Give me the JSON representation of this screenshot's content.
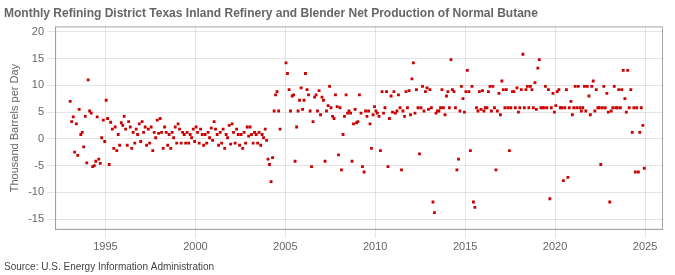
{
  "chart_data": {
    "type": "scatter",
    "title": "Monthly Refining District Texas Inland Refinery and Blender Net Production of Normal Butane",
    "ylabel": "Thousand Barrels per Day",
    "annotations": [
      "Source: U.S. Energy Information Administration"
    ],
    "color": "#cc0000",
    "marker": "square",
    "grid": true,
    "xlim": [
      1992.2,
      2026.0
    ],
    "xticks": [
      1995,
      2000,
      2005,
      2010,
      2015,
      2020,
      2025
    ],
    "ylim": [
      -17,
      21
    ],
    "yticks": [
      -15,
      -10,
      -5,
      0,
      5,
      10,
      15,
      20
    ],
    "x": [
      1993.04,
      1993.12,
      1993.21,
      1993.29,
      1993.38,
      1993.46,
      1993.54,
      1993.63,
      1993.71,
      1993.79,
      1993.88,
      1993.96,
      1994.04,
      1994.12,
      1994.21,
      1994.29,
      1994.38,
      1994.46,
      1994.54,
      1994.63,
      1994.71,
      1994.79,
      1994.88,
      1994.96,
      1995.04,
      1995.12,
      1995.21,
      1995.29,
      1995.38,
      1995.46,
      1995.54,
      1995.63,
      1995.71,
      1995.79,
      1995.88,
      1995.96,
      1996.04,
      1996.12,
      1996.21,
      1996.29,
      1996.38,
      1996.46,
      1996.54,
      1996.63,
      1996.71,
      1996.79,
      1996.88,
      1996.96,
      1997.04,
      1997.12,
      1997.21,
      1997.29,
      1997.38,
      1997.46,
      1997.54,
      1997.63,
      1997.71,
      1997.79,
      1997.88,
      1997.96,
      1998.04,
      1998.12,
      1998.21,
      1998.29,
      1998.38,
      1998.46,
      1998.54,
      1998.63,
      1998.71,
      1998.79,
      1998.88,
      1998.96,
      1999.04,
      1999.12,
      1999.21,
      1999.29,
      1999.38,
      1999.46,
      1999.54,
      1999.63,
      1999.71,
      1999.79,
      1999.88,
      1999.96,
      2000.04,
      2000.12,
      2000.21,
      2000.29,
      2000.38,
      2000.46,
      2000.54,
      2000.63,
      2000.71,
      2000.79,
      2000.88,
      2000.96,
      2001.04,
      2001.12,
      2001.21,
      2001.29,
      2001.38,
      2001.46,
      2001.54,
      2001.63,
      2001.71,
      2001.79,
      2001.88,
      2001.96,
      2002.04,
      2002.12,
      2002.21,
      2002.29,
      2002.38,
      2002.46,
      2002.54,
      2002.63,
      2002.71,
      2002.79,
      2002.88,
      2002.96,
      2003.04,
      2003.12,
      2003.21,
      2003.29,
      2003.38,
      2003.46,
      2003.54,
      2003.63,
      2003.71,
      2003.79,
      2003.88,
      2003.96,
      2004.04,
      2004.12,
      2004.21,
      2004.29,
      2004.38,
      2004.46,
      2004.54,
      2004.63,
      2004.71,
      2005.04,
      2005.12,
      2005.21,
      2005.29,
      2005.38,
      2005.46,
      2005.54,
      2005.63,
      2005.71,
      2005.79,
      2005.88,
      2005.96,
      2006.04,
      2006.12,
      2006.21,
      2006.29,
      2006.38,
      2006.46,
      2006.54,
      2006.63,
      2006.71,
      2006.79,
      2006.88,
      2006.96,
      2007.04,
      2007.12,
      2007.21,
      2007.29,
      2007.38,
      2007.46,
      2007.54,
      2007.63,
      2007.71,
      2007.79,
      2007.88,
      2007.96,
      2008.04,
      2008.12,
      2008.21,
      2008.29,
      2008.38,
      2008.46,
      2008.54,
      2008.63,
      2008.71,
      2008.79,
      2008.88,
      2008.96,
      2009.04,
      2009.12,
      2009.21,
      2009.29,
      2009.38,
      2009.46,
      2009.54,
      2009.63,
      2009.71,
      2009.79,
      2009.88,
      2009.96,
      2010.04,
      2010.12,
      2010.21,
      2010.29,
      2010.38,
      2010.46,
      2010.54,
      2010.63,
      2010.71,
      2010.79,
      2010.88,
      2010.96,
      2011.04,
      2011.12,
      2011.21,
      2011.29,
      2011.38,
      2011.46,
      2011.54,
      2011.63,
      2011.71,
      2011.79,
      2011.88,
      2011.96,
      2012.04,
      2012.12,
      2012.21,
      2012.29,
      2012.38,
      2012.46,
      2012.54,
      2012.63,
      2012.71,
      2012.79,
      2012.88,
      2012.96,
      2013.04,
      2013.12,
      2013.21,
      2013.29,
      2013.38,
      2013.46,
      2013.54,
      2013.63,
      2013.71,
      2013.79,
      2013.88,
      2013.96,
      2014.04,
      2014.12,
      2014.21,
      2014.29,
      2014.38,
      2014.46,
      2014.54,
      2014.63,
      2014.71,
      2014.79,
      2014.88,
      2014.96,
      2015.04,
      2015.12,
      2015.21,
      2015.29,
      2015.38,
      2015.46,
      2015.54,
      2015.63,
      2015.71,
      2015.79,
      2015.88,
      2015.96,
      2016.04,
      2016.12,
      2016.21,
      2016.29,
      2016.38,
      2016.46,
      2016.54,
      2016.63,
      2016.71,
      2016.79,
      2016.88,
      2016.96,
      2017.04,
      2017.12,
      2017.21,
      2017.29,
      2017.38,
      2017.46,
      2017.54,
      2017.63,
      2017.71,
      2017.79,
      2017.88,
      2017.96,
      2018.04,
      2018.12,
      2018.21,
      2018.29,
      2018.38,
      2018.46,
      2018.54,
      2018.63,
      2018.71,
      2018.79,
      2018.88,
      2018.96,
      2019.04,
      2019.12,
      2019.21,
      2019.29,
      2019.38,
      2019.46,
      2019.54,
      2019.63,
      2019.71,
      2019.79,
      2019.88,
      2019.96,
      2020.04,
      2020.12,
      2020.21,
      2020.29,
      2020.38,
      2020.46,
      2020.54,
      2020.63,
      2020.71,
      2020.79,
      2020.88,
      2020.96,
      2021.04,
      2021.12,
      2021.21,
      2021.29,
      2021.38,
      2021.46,
      2021.54,
      2021.63,
      2021.71,
      2021.79,
      2021.88,
      2021.96,
      2022.04,
      2022.12,
      2022.21,
      2022.29,
      2022.38,
      2022.46,
      2022.54,
      2022.63,
      2022.71,
      2022.79,
      2022.88,
      2022.96,
      2023.04,
      2023.12,
      2023.21,
      2023.29,
      2023.38,
      2023.46,
      2023.54,
      2023.63,
      2023.71,
      2023.79,
      2023.88,
      2023.96,
      2024.04,
      2024.12,
      2024.21,
      2024.29,
      2024.38,
      2024.46,
      2024.54,
      2024.63,
      2024.71,
      2024.79,
      2024.88,
      2024.96
    ],
    "values": [
      7.0,
      3.2,
      4.1,
      -2.5,
      2.8,
      -3.1,
      5.5,
      0.8,
      1.2,
      -1.5,
      4.2,
      -4.5,
      11.0,
      5.2,
      4.8,
      -5.2,
      -5.0,
      -4.2,
      4.1,
      -3.8,
      -4.6,
      0.2,
      3.5,
      -0.5,
      7.2,
      3.8,
      -4.8,
      3.1,
      1.8,
      -1.8,
      2.2,
      -2.2,
      0.8,
      -1.2,
      3.0,
      2.5,
      4.2,
      1.8,
      -1.2,
      3.2,
      2.2,
      -1.8,
      1.2,
      -0.8,
      1.8,
      0.8,
      2.8,
      -0.5,
      3.2,
      1.2,
      2.2,
      -1.2,
      1.8,
      -0.8,
      2.2,
      -2.2,
      1.2,
      0.2,
      3.5,
      1.0,
      3.8,
      1.2,
      -1.8,
      2.2,
      1.2,
      -1.2,
      0.8,
      -1.8,
      1.2,
      0.2,
      2.2,
      -0.8,
      2.8,
      1.8,
      -0.8,
      1.2,
      0.8,
      -0.8,
      1.2,
      -0.8,
      0.8,
      0.2,
      1.8,
      -0.5,
      2.2,
      1.2,
      -0.8,
      1.8,
      0.8,
      -1.2,
      0.8,
      -0.8,
      1.2,
      0.2,
      2.0,
      -0.3,
      3.2,
      1.8,
      0.8,
      -1.2,
      1.2,
      -0.8,
      1.8,
      -1.8,
      0.8,
      0.2,
      2.5,
      -1.0,
      2.8,
      1.2,
      -0.8,
      1.8,
      0.8,
      -1.2,
      0.8,
      -1.8,
      1.2,
      -0.8,
      2.2,
      0.5,
      2.2,
      0.8,
      -0.8,
      1.2,
      0.8,
      -0.8,
      1.2,
      -1.2,
      0.8,
      0.2,
      1.8,
      -0.3,
      -3.8,
      -4.8,
      -8.0,
      -3.5,
      5.2,
      8.2,
      8.8,
      5.2,
      1.8,
      14.2,
      12.2,
      9.2,
      5.2,
      8.0,
      8.2,
      -4.2,
      2.2,
      5.2,
      7.2,
      9.5,
      5.5,
      7.2,
      12.2,
      9.2,
      8.2,
      5.2,
      -5.2,
      3.2,
      7.8,
      8.2,
      5.2,
      9.0,
      4.5,
      7.8,
      7.2,
      -4.2,
      5.2,
      6.2,
      9.8,
      5.8,
      4.2,
      3.8,
      8.2,
      6.0,
      -3.0,
      5.8,
      -5.8,
      0.8,
      4.2,
      8.2,
      4.8,
      5.2,
      4.8,
      -4.2,
      2.8,
      5.5,
      3.0,
      3.2,
      8.2,
      4.8,
      -5.2,
      -6.2,
      5.2,
      4.2,
      5.2,
      2.8,
      -1.8,
      4.5,
      6.0,
      5.2,
      4.8,
      4.2,
      -2.2,
      8.8,
      4.8,
      5.8,
      8.8,
      -5.2,
      3.8,
      8.0,
      5.0,
      8.8,
      4.8,
      5.2,
      8.2,
      5.8,
      -5.8,
      5.2,
      4.2,
      8.8,
      5.8,
      9.0,
      4.5,
      11.2,
      14.2,
      4.8,
      9.2,
      5.8,
      -2.8,
      5.8,
      9.8,
      5.2,
      8.8,
      9.5,
      5.5,
      9.2,
      5.8,
      -11.8,
      -13.8,
      4.8,
      5.2,
      5.2,
      5.8,
      9.2,
      5.8,
      4.5,
      8.0,
      8.8,
      5.8,
      14.8,
      9.2,
      8.8,
      5.8,
      -5.8,
      -3.8,
      5.2,
      9.8,
      7.5,
      5.0,
      8.8,
      12.8,
      8.8,
      -2.2,
      9.8,
      -11.8,
      -12.8,
      5.8,
      5.2,
      8.8,
      5.5,
      9.0,
      5.2,
      5.8,
      5.8,
      8.8,
      9.8,
      5.2,
      9.8,
      5.8,
      -5.8,
      5.2,
      8.5,
      4.5,
      10.8,
      9.2,
      5.8,
      9.2,
      5.8,
      -2.2,
      5.8,
      8.8,
      8.8,
      5.8,
      9.5,
      5.0,
      5.8,
      9.2,
      15.8,
      5.8,
      9.2,
      9.8,
      5.8,
      9.8,
      9.2,
      5.8,
      10.5,
      5.5,
      13.2,
      14.8,
      5.8,
      5.8,
      5.8,
      9.8,
      5.8,
      9.2,
      -11.2,
      5.8,
      8.5,
      5.0,
      6.2,
      8.8,
      9.2,
      5.8,
      5.8,
      -7.8,
      5.8,
      9.2,
      -7.2,
      5.8,
      7.0,
      4.5,
      5.8,
      9.8,
      5.8,
      9.8,
      5.8,
      5.2,
      5.8,
      9.8,
      5.2,
      9.8,
      8.0,
      4.5,
      9.8,
      10.8,
      5.2,
      9.2,
      5.8,
      5.8,
      -4.8,
      5.8,
      9.8,
      5.8,
      8.5,
      5.0,
      -11.8,
      5.2,
      5.8,
      9.8,
      5.8,
      5.8,
      9.2,
      5.8,
      9.2,
      12.8,
      7.5,
      5.0,
      12.8,
      5.8,
      9.2,
      1.2,
      5.8,
      -6.2,
      5.8,
      -6.2,
      1.2,
      5.8,
      2.5,
      -5.5
    ]
  }
}
